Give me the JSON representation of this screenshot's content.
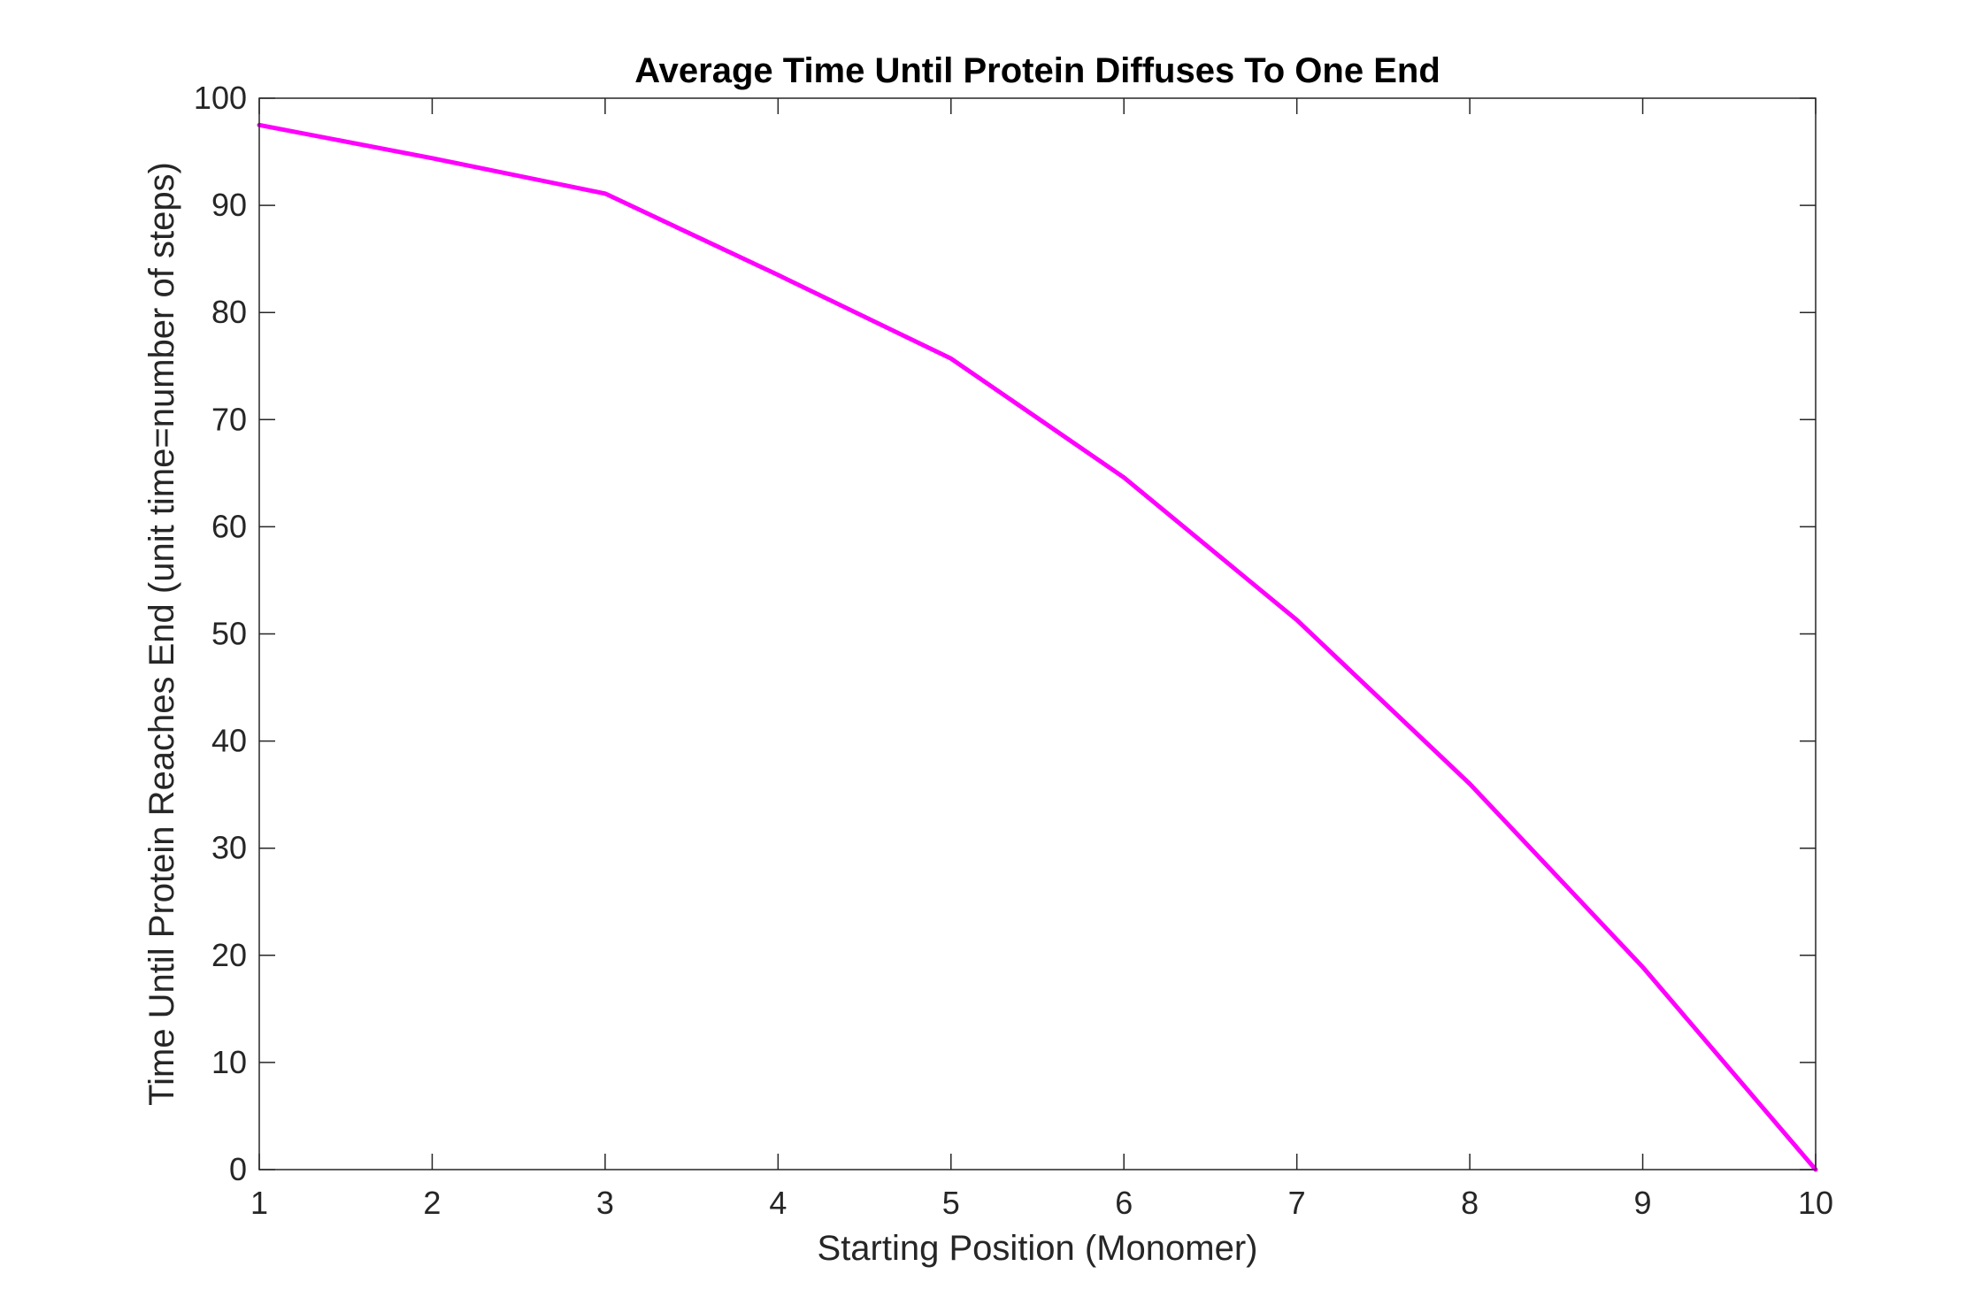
{
  "chart_data": {
    "type": "line",
    "title": "Average Time Until Protein Diffuses To One End",
    "xlabel": "Starting Position (Monomer)",
    "ylabel": "Time Until Protein Reaches End (unit time=number of steps)",
    "xlim": [
      1,
      10
    ],
    "ylim": [
      0,
      100
    ],
    "xticks": [
      1,
      2,
      3,
      4,
      5,
      6,
      7,
      8,
      9,
      10
    ],
    "yticks": [
      0,
      10,
      20,
      30,
      40,
      50,
      60,
      70,
      80,
      90,
      100
    ],
    "grid": false,
    "legend": "none",
    "series": [
      {
        "color": "#ff00ff",
        "x": [
          1,
          2,
          3,
          4,
          5,
          6,
          7,
          8,
          9,
          10
        ],
        "values": [
          97.5,
          94.4,
          91.1,
          83.5,
          75.7,
          64.6,
          51.3,
          36.0,
          18.9,
          0
        ]
      }
    ]
  }
}
